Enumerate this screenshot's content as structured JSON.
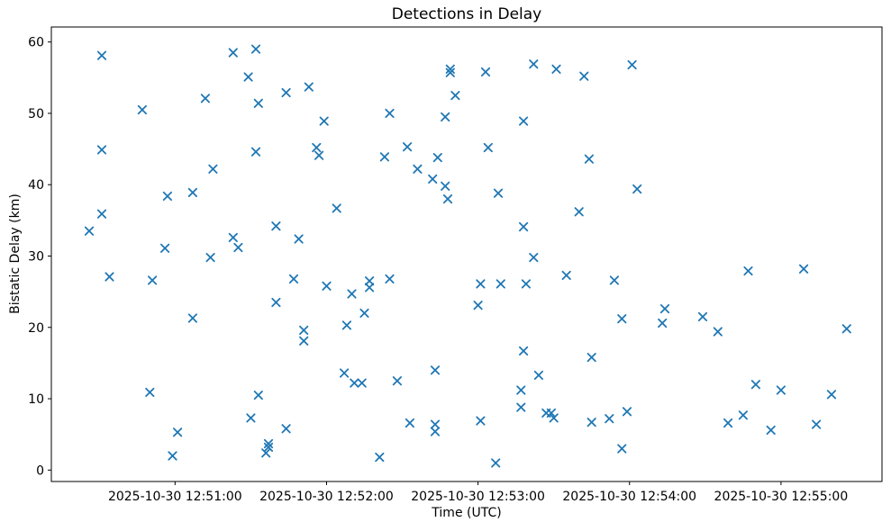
{
  "figure": {
    "title": "Detections in Delay",
    "xlabel": "Time (UTC)",
    "ylabel": "Bistatic Delay (km)"
  },
  "chart_data": {
    "type": "scatter",
    "title": "Detections in Delay",
    "xlabel": "Time (UTC)",
    "ylabel": "Bistatic Delay (km)",
    "marker": "x",
    "marker_color": "#1f77b4",
    "grid": false,
    "legend": null,
    "date": "2025-10-30",
    "x_ticks": [
      "2025-10-30 12:51:00",
      "2025-10-30 12:52:00",
      "2025-10-30 12:53:00",
      "2025-10-30 12:54:00",
      "2025-10-30 12:55:00"
    ],
    "y_ticks": [
      0,
      10,
      20,
      30,
      40,
      50,
      60
    ],
    "xlim_seconds_after_125000": [
      11,
      340
    ],
    "ylim": [
      -1.6,
      62.1
    ],
    "points_format": [
      "time_utc",
      "delay_km"
    ],
    "points": [
      [
        "12:50:26",
        33.5
      ],
      [
        "12:50:31",
        58.1
      ],
      [
        "12:50:31",
        44.9
      ],
      [
        "12:50:31",
        35.9
      ],
      [
        "12:50:34",
        27.1
      ],
      [
        "12:50:47",
        50.5
      ],
      [
        "12:50:50",
        10.9
      ],
      [
        "12:50:51",
        26.6
      ],
      [
        "12:50:56",
        31.1
      ],
      [
        "12:50:57",
        38.4
      ],
      [
        "12:50:59",
        2.0
      ],
      [
        "12:51:01",
        5.3
      ],
      [
        "12:51:07",
        38.9
      ],
      [
        "12:51:07",
        21.3
      ],
      [
        "12:51:12",
        52.1
      ],
      [
        "12:51:14",
        29.8
      ],
      [
        "12:51:15",
        42.2
      ],
      [
        "12:51:23",
        58.5
      ],
      [
        "12:51:23",
        32.6
      ],
      [
        "12:51:25",
        31.2
      ],
      [
        "12:51:29",
        55.1
      ],
      [
        "12:51:30",
        7.3
      ],
      [
        "12:51:32",
        59.0
      ],
      [
        "12:51:32",
        44.6
      ],
      [
        "12:51:33",
        51.4
      ],
      [
        "12:51:33",
        10.5
      ],
      [
        "12:51:36",
        2.4
      ],
      [
        "12:51:37",
        3.7
      ],
      [
        "12:51:37",
        3.2
      ],
      [
        "12:51:40",
        34.2
      ],
      [
        "12:51:40",
        23.5
      ],
      [
        "12:51:44",
        52.9
      ],
      [
        "12:51:44",
        5.8
      ],
      [
        "12:51:47",
        26.8
      ],
      [
        "12:51:49",
        32.4
      ],
      [
        "12:51:51",
        19.6
      ],
      [
        "12:51:51",
        18.1
      ],
      [
        "12:51:53",
        53.7
      ],
      [
        "12:51:56",
        45.2
      ],
      [
        "12:51:57",
        44.1
      ],
      [
        "12:51:59",
        48.9
      ],
      [
        "12:52:00",
        25.8
      ],
      [
        "12:52:04",
        36.7
      ],
      [
        "12:52:07",
        13.6
      ],
      [
        "12:52:08",
        20.3
      ],
      [
        "12:52:10",
        24.7
      ],
      [
        "12:52:11",
        12.2
      ],
      [
        "12:52:14",
        12.2
      ],
      [
        "12:52:15",
        22.0
      ],
      [
        "12:52:17",
        26.5
      ],
      [
        "12:52:17",
        25.6
      ],
      [
        "12:52:21",
        1.8
      ],
      [
        "12:52:23",
        43.9
      ],
      [
        "12:52:25",
        50.0
      ],
      [
        "12:52:25",
        26.8
      ],
      [
        "12:52:28",
        12.5
      ],
      [
        "12:52:32",
        45.3
      ],
      [
        "12:52:33",
        6.6
      ],
      [
        "12:52:36",
        42.2
      ],
      [
        "12:52:42",
        40.8
      ],
      [
        "12:52:43",
        14.0
      ],
      [
        "12:52:43",
        6.4
      ],
      [
        "12:52:43",
        5.4
      ],
      [
        "12:52:44",
        43.8
      ],
      [
        "12:52:47",
        49.5
      ],
      [
        "12:52:47",
        39.8
      ],
      [
        "12:52:48",
        38.0
      ],
      [
        "12:52:49",
        56.2
      ],
      [
        "12:52:49",
        55.7
      ],
      [
        "12:52:51",
        52.5
      ],
      [
        "12:53:00",
        23.1
      ],
      [
        "12:53:01",
        26.1
      ],
      [
        "12:53:01",
        6.9
      ],
      [
        "12:53:03",
        55.8
      ],
      [
        "12:53:04",
        45.2
      ],
      [
        "12:53:07",
        1.0
      ],
      [
        "12:53:08",
        38.8
      ],
      [
        "12:53:09",
        26.1
      ],
      [
        "12:53:17",
        11.2
      ],
      [
        "12:53:17",
        8.8
      ],
      [
        "12:53:18",
        48.9
      ],
      [
        "12:53:18",
        34.1
      ],
      [
        "12:53:18",
        16.7
      ],
      [
        "12:53:19",
        26.1
      ],
      [
        "12:53:22",
        56.9
      ],
      [
        "12:53:22",
        29.8
      ],
      [
        "12:53:24",
        13.3
      ],
      [
        "12:53:27",
        8.0
      ],
      [
        "12:53:29",
        8.0
      ],
      [
        "12:53:30",
        7.3
      ],
      [
        "12:53:31",
        56.2
      ],
      [
        "12:53:35",
        27.3
      ],
      [
        "12:53:40",
        36.2
      ],
      [
        "12:53:42",
        55.2
      ],
      [
        "12:53:44",
        43.6
      ],
      [
        "12:53:45",
        15.8
      ],
      [
        "12:53:45",
        6.7
      ],
      [
        "12:53:52",
        7.2
      ],
      [
        "12:53:54",
        26.6
      ],
      [
        "12:53:57",
        21.2
      ],
      [
        "12:53:57",
        3.0
      ],
      [
        "12:53:59",
        8.2
      ],
      [
        "12:54:01",
        56.8
      ],
      [
        "12:54:03",
        39.4
      ],
      [
        "12:54:13",
        20.6
      ],
      [
        "12:54:14",
        22.6
      ],
      [
        "12:54:29",
        21.5
      ],
      [
        "12:54:35",
        19.4
      ],
      [
        "12:54:39",
        6.6
      ],
      [
        "12:54:45",
        7.7
      ],
      [
        "12:54:47",
        27.9
      ],
      [
        "12:54:50",
        12.0
      ],
      [
        "12:54:56",
        5.6
      ],
      [
        "12:55:00",
        11.2
      ],
      [
        "12:55:09",
        28.2
      ],
      [
        "12:55:14",
        6.4
      ],
      [
        "12:55:20",
        10.6
      ],
      [
        "12:55:26",
        19.8
      ]
    ]
  }
}
